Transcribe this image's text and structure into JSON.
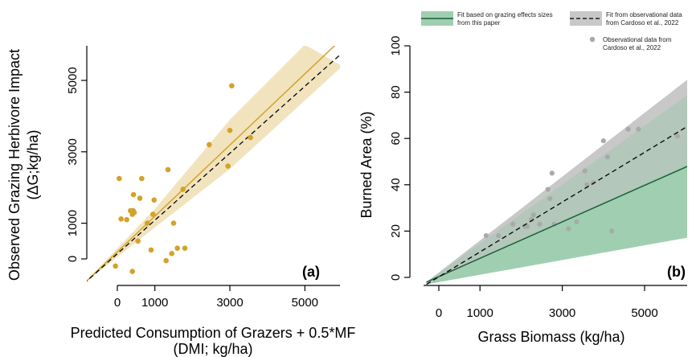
{
  "chart_data": [
    {
      "panel_label": "(a)",
      "type": "scatter",
      "xlabel_line1": "Predicted Consumption of Grazers + 0.5*MF",
      "xlabel_line2": "(DMI; kg/ha)",
      "ylabel_line1": "Observed Grazing Herbivore Impact",
      "ylabel_line2": "(ΔG;kg/ha)",
      "xlim": [
        -1000,
        6000
      ],
      "ylim": [
        -700,
        6000
      ],
      "x_ticks": [
        1000,
        3000,
        5000
      ],
      "x_tick_labels": [
        "0",
        "1000",
        "3000",
        "5000"
      ],
      "x_tick_values": [
        0,
        1000,
        3000,
        5000
      ],
      "y_tick_values": [
        0,
        1000,
        3000,
        5000
      ],
      "y_tick_labels": [
        "0",
        "1000",
        "3000",
        "5000"
      ],
      "colors": {
        "points": "#d4a229",
        "fit_line": "#d4a229",
        "band": "#f1e3bd",
        "one_to_one": "#000000"
      },
      "points": [
        {
          "x": 50,
          "y": 2250
        },
        {
          "x": 100,
          "y": 1120
        },
        {
          "x": 250,
          "y": 1100
        },
        {
          "x": 350,
          "y": 1350
        },
        {
          "x": 400,
          "y": 1250
        },
        {
          "x": 420,
          "y": 1350
        },
        {
          "x": 430,
          "y": 1800
        },
        {
          "x": 450,
          "y": 1300
        },
        {
          "x": 400,
          "y": -350
        },
        {
          "x": 550,
          "y": 500
        },
        {
          "x": 600,
          "y": 1700
        },
        {
          "x": 650,
          "y": 2250
        },
        {
          "x": 800,
          "y": 1000
        },
        {
          "x": 900,
          "y": 250
        },
        {
          "x": 950,
          "y": 1250
        },
        {
          "x": 980,
          "y": 1650
        },
        {
          "x": 1300,
          "y": -50
        },
        {
          "x": 1350,
          "y": 2500
        },
        {
          "x": 1450,
          "y": 150
        },
        {
          "x": 1500,
          "y": 1000
        },
        {
          "x": 1600,
          "y": 300
        },
        {
          "x": 1750,
          "y": 1950
        },
        {
          "x": 1800,
          "y": 300
        },
        {
          "x": 2450,
          "y": 3200
        },
        {
          "x": 2950,
          "y": 2600
        },
        {
          "x": 3000,
          "y": 3600
        },
        {
          "x": 3050,
          "y": 4850
        },
        {
          "x": 3550,
          "y": 3400
        },
        {
          "x": -50,
          "y": -200
        }
      ],
      "fit_line": [
        [
          -900,
          -700
        ],
        [
          6000,
          6000
        ]
      ],
      "band_upper": [
        [
          -900,
          -700
        ],
        [
          1000,
          1400
        ],
        [
          3000,
          3900
        ],
        [
          5000,
          6000
        ]
      ],
      "band_lower": [
        [
          -900,
          -700
        ],
        [
          1000,
          880
        ],
        [
          3000,
          2520
        ],
        [
          6000,
          5400
        ]
      ],
      "one_to_one": [
        [
          -900,
          -700
        ],
        [
          6000,
          6000
        ]
      ]
    },
    {
      "panel_label": "(b)",
      "type": "scatter",
      "xlabel": "Grass Biomass (kg/ha)",
      "ylabel": "Burned Area (%)",
      "xlim": [
        -300,
        6300
      ],
      "ylim": [
        -3,
        100
      ],
      "x_tick_values": [
        0,
        1000,
        3000,
        5000
      ],
      "x_tick_labels": [
        "0",
        "1000",
        "3000",
        "5000"
      ],
      "y_tick_values": [
        0,
        20,
        40,
        60,
        80,
        100
      ],
      "y_tick_labels": [
        "0",
        "20",
        "40",
        "60",
        "80",
        "100"
      ],
      "colors": {
        "points": "#a9a9a9",
        "green_line": "#1b5e3b",
        "green_band": "#9fcfb0",
        "grey_band": "#c8c8c8",
        "dashed": "#000000"
      },
      "legend": [
        {
          "label_line1": "Fit based on grazing effects sizes",
          "label_line2": "from this paper",
          "kind": "green-fit"
        },
        {
          "label_line1": "Fit from observational data",
          "label_line2": "from Cardoso et al., 2022",
          "kind": "grey-fit"
        },
        {
          "label_line1": "Observational data from",
          "label_line2": "Cardoso et al., 2022",
          "kind": "points"
        }
      ],
      "points": [
        {
          "x": 1150,
          "y": 18
        },
        {
          "x": 1450,
          "y": 18
        },
        {
          "x": 1800,
          "y": 23
        },
        {
          "x": 2100,
          "y": 22
        },
        {
          "x": 2150,
          "y": 22
        },
        {
          "x": 2250,
          "y": 25
        },
        {
          "x": 2300,
          "y": 27
        },
        {
          "x": 2450,
          "y": 23
        },
        {
          "x": 2650,
          "y": 38
        },
        {
          "x": 2700,
          "y": 34
        },
        {
          "x": 2750,
          "y": 45
        },
        {
          "x": 2800,
          "y": 23
        },
        {
          "x": 3150,
          "y": 21
        },
        {
          "x": 3350,
          "y": 24
        },
        {
          "x": 3550,
          "y": 46
        },
        {
          "x": 3600,
          "y": 40
        },
        {
          "x": 3750,
          "y": 41
        },
        {
          "x": 4000,
          "y": 59
        },
        {
          "x": 4100,
          "y": 52
        },
        {
          "x": 4200,
          "y": 20
        },
        {
          "x": 4600,
          "y": 64
        },
        {
          "x": 4850,
          "y": 64
        },
        {
          "x": 5800,
          "y": 61
        }
      ],
      "green_line": [
        [
          -300,
          -2
        ],
        [
          6300,
          50
        ]
      ],
      "dashed_line": [
        [
          -300,
          -3
        ],
        [
          6300,
          68
        ]
      ],
      "grey_band_upper": [
        [
          -300,
          -2
        ],
        [
          6300,
          89
        ]
      ],
      "grey_band_lower": [
        [
          -300,
          -3
        ],
        [
          6300,
          51
        ]
      ],
      "green_band_upper": [
        [
          -300,
          -2
        ],
        [
          6300,
          82
        ]
      ],
      "green_band_lower": [
        [
          -300,
          -3
        ],
        [
          6300,
          18
        ]
      ]
    }
  ]
}
